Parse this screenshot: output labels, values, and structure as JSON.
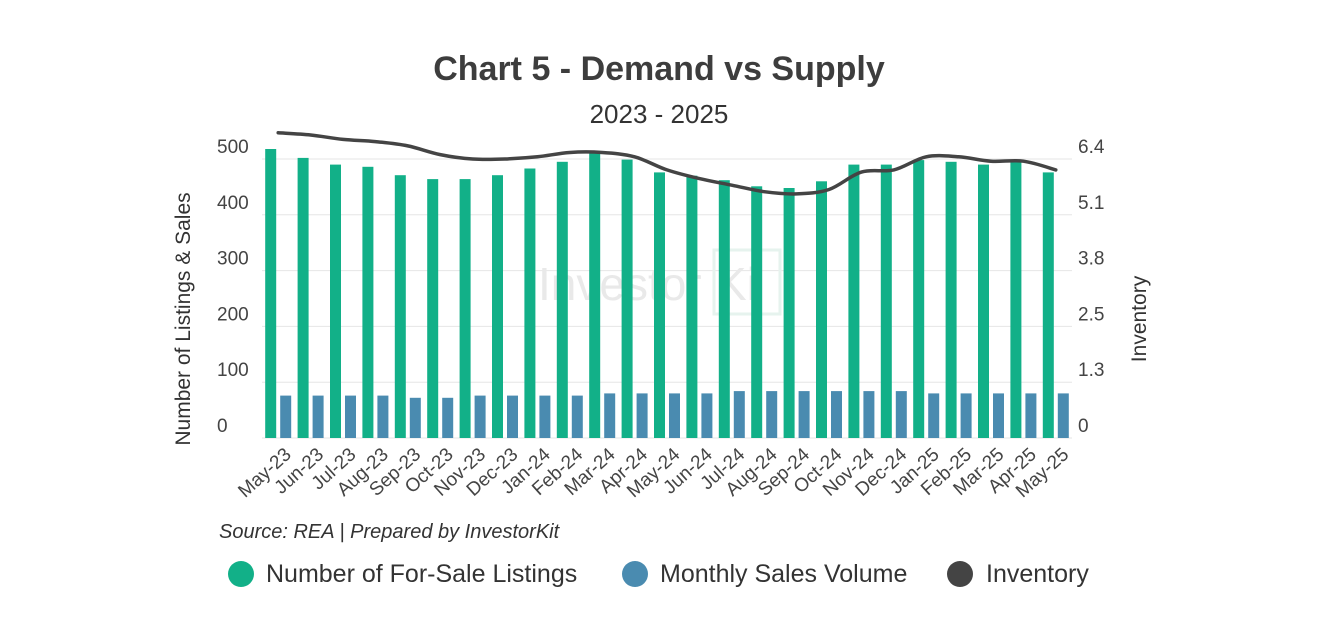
{
  "chart_data": {
    "type": "bar",
    "title": "Chart 5 - Demand vs Supply",
    "subtitle": "2023 - 2025",
    "categories": [
      "May-23",
      "Jun-23",
      "Jul-23",
      "Aug-23",
      "Sep-23",
      "Oct-23",
      "Nov-23",
      "Dec-23",
      "Jan-24",
      "Feb-24",
      "Mar-24",
      "Apr-24",
      "May-24",
      "Jun-24",
      "Jul-24",
      "Aug-24",
      "Sep-24",
      "Oct-24",
      "Nov-24",
      "Dec-24",
      "Jan-25",
      "Feb-25",
      "Mar-25",
      "Apr-25",
      "May-25"
    ],
    "series": [
      {
        "name": "Number of For-Sale Listings",
        "type": "bar",
        "axis": "left",
        "color": "#12b088",
        "values": [
          518,
          502,
          490,
          486,
          471,
          464,
          464,
          471,
          483,
          495,
          510,
          499,
          476,
          470,
          462,
          451,
          448,
          460,
          490,
          490,
          498,
          495,
          490,
          494,
          476
        ]
      },
      {
        "name": "Monthly Sales Volume",
        "type": "bar",
        "axis": "left",
        "color": "#4a8bb0",
        "values": [
          76,
          76,
          76,
          76,
          72,
          72,
          76,
          76,
          76,
          76,
          80,
          80,
          80,
          80,
          84,
          84,
          84,
          84,
          84,
          84,
          80,
          80,
          80,
          80,
          80
        ]
      },
      {
        "name": "Inventory",
        "type": "line",
        "axis": "right",
        "color": "#444444",
        "values": [
          7.0,
          6.95,
          6.85,
          6.8,
          6.7,
          6.5,
          6.4,
          6.4,
          6.45,
          6.55,
          6.55,
          6.45,
          6.15,
          5.95,
          5.8,
          5.65,
          5.6,
          5.7,
          6.1,
          6.15,
          6.45,
          6.45,
          6.35,
          6.35,
          6.15
        ]
      }
    ],
    "ylabel": "Number of Listings & Sales",
    "ylabel_right": "Inventory",
    "ylim": [
      0,
      500
    ],
    "yticks": [
      "0",
      "100",
      "200",
      "300",
      "400",
      "500"
    ],
    "ylim_right": [
      0,
      6.4
    ],
    "yticks_right": [
      "0",
      "1.3",
      "2.5",
      "3.8",
      "5.1",
      "6.4"
    ],
    "grid": true,
    "legend_position": "bottom",
    "source": "Source: REA | Prepared by InvestorKit",
    "watermark": {
      "main": "Investor",
      "boxed": "Ki"
    }
  }
}
